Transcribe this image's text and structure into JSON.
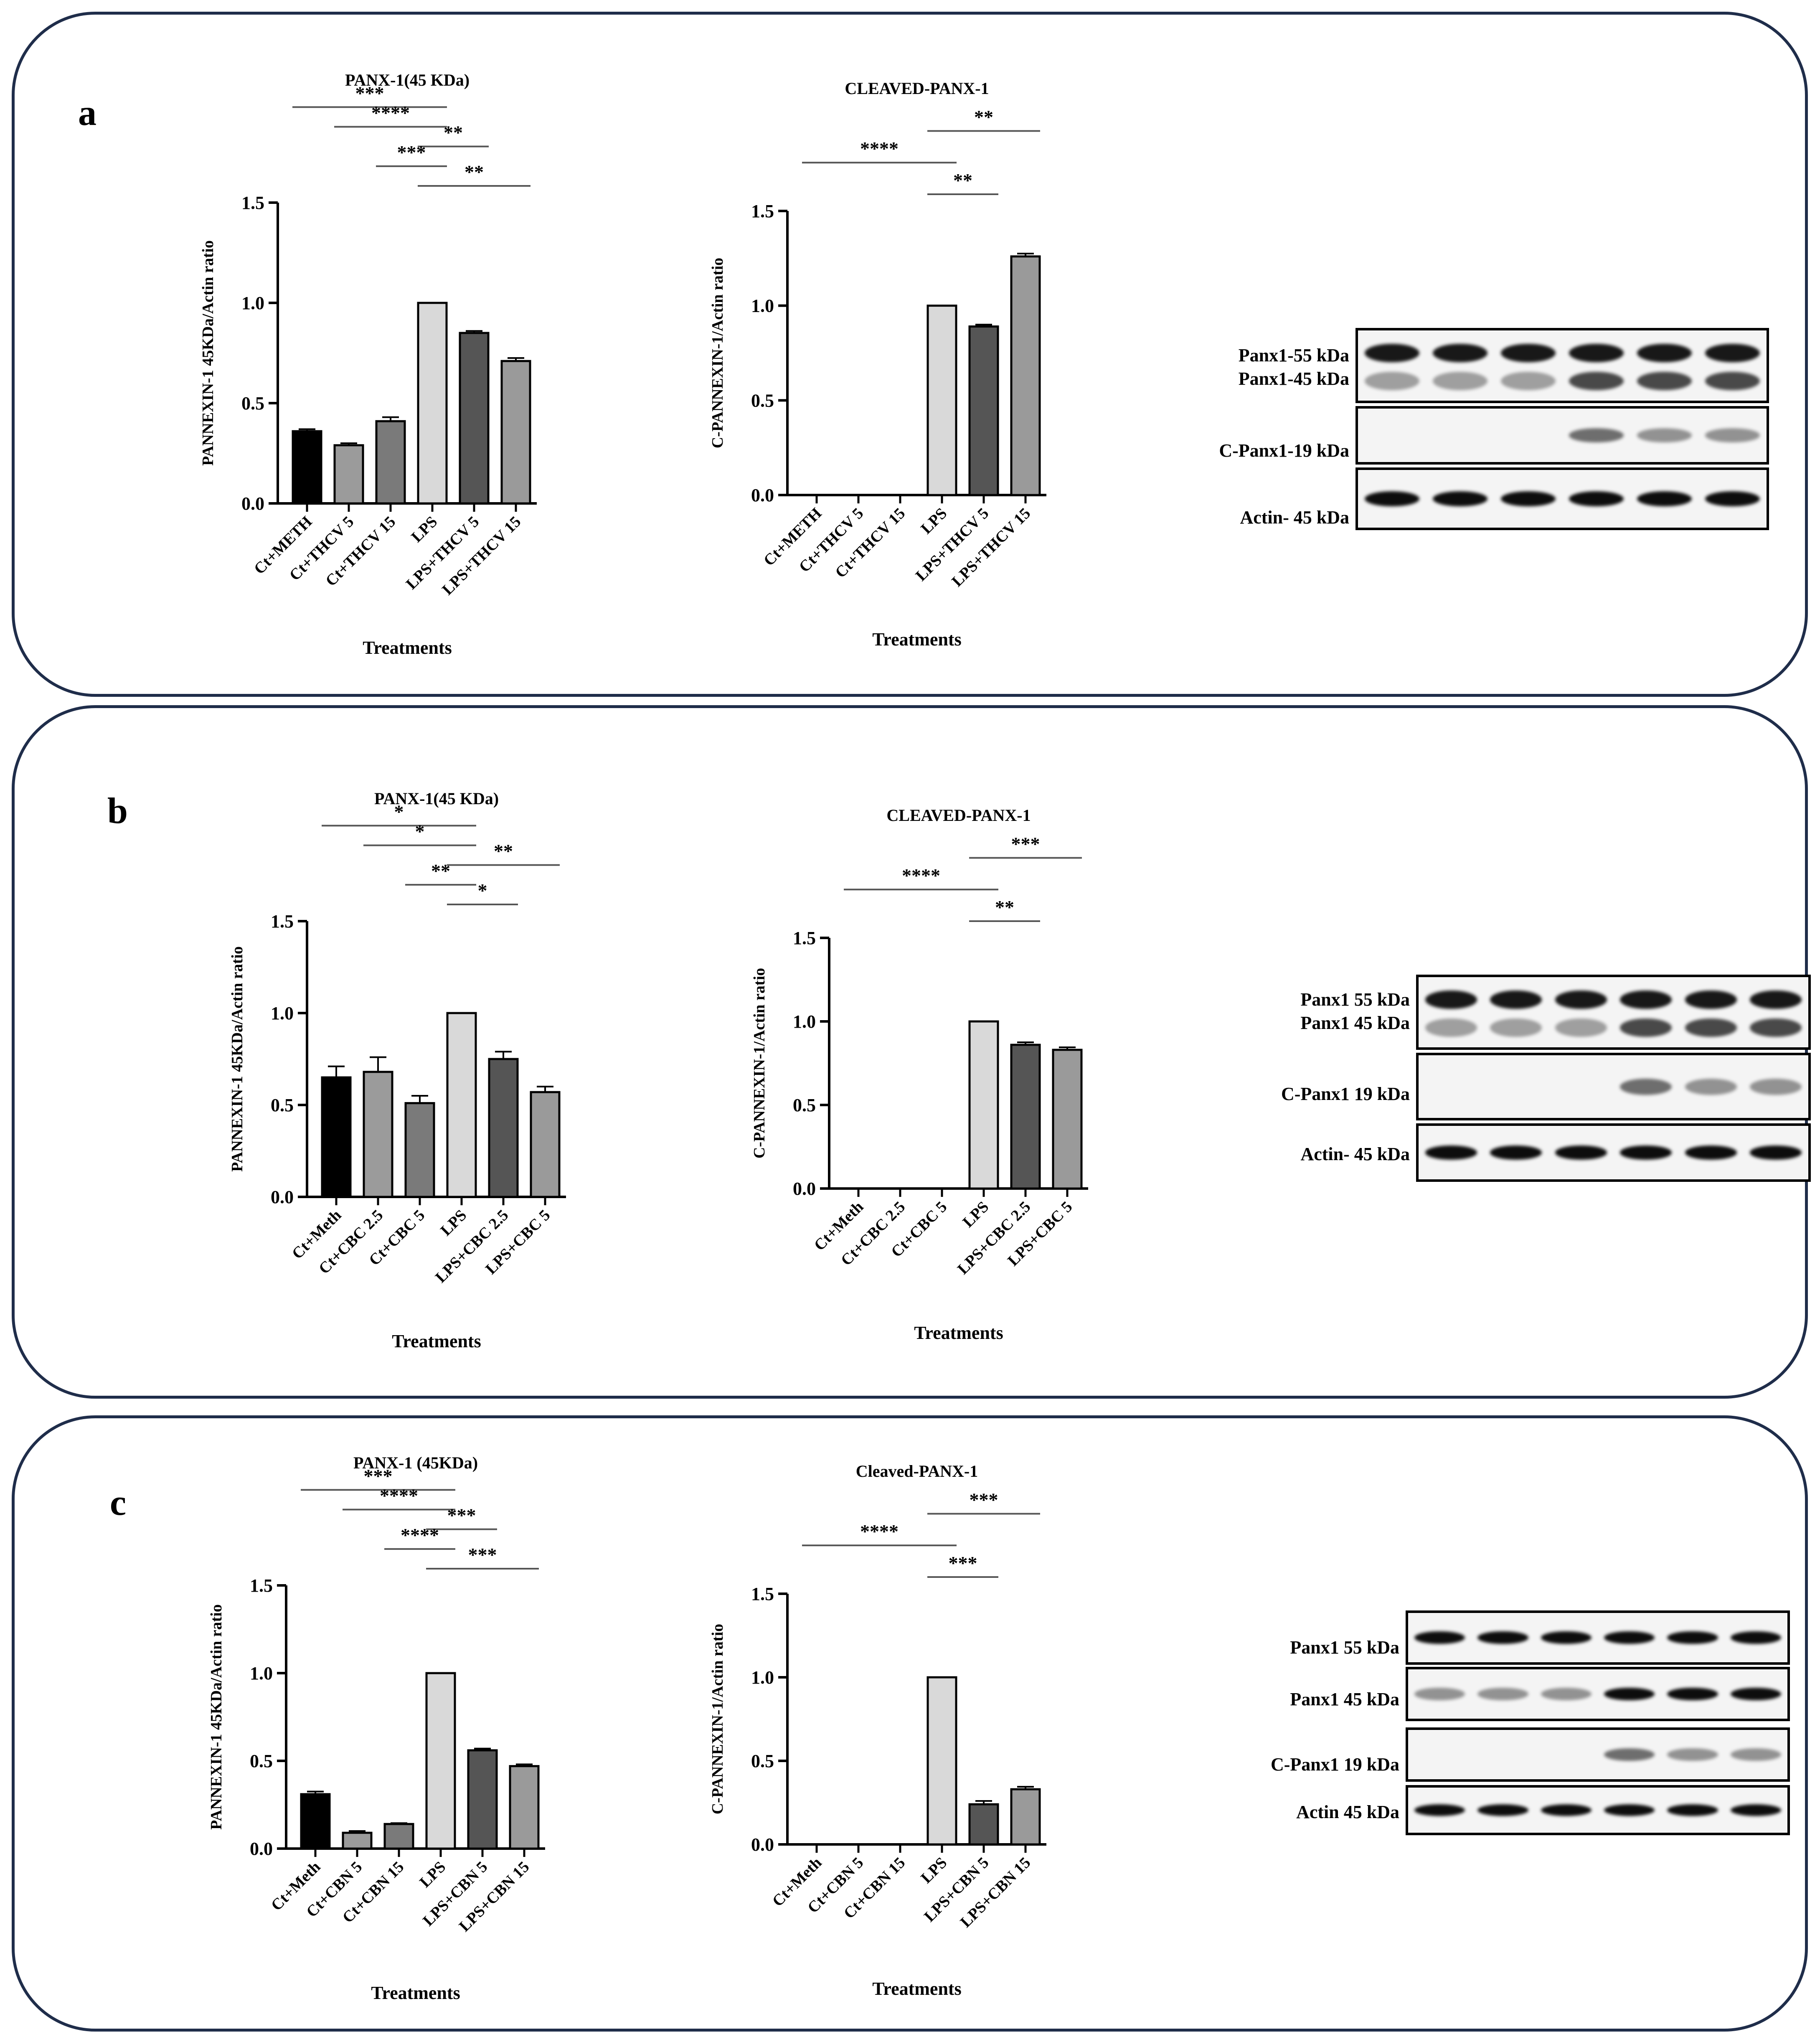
{
  "panels": [
    {
      "letter": "a",
      "charts": [
        {
          "type": "bar",
          "title": "PANX-1(45 KDa)",
          "ylabel": "PANNEXIN-1 45KDa/Actin ratio",
          "xlabel": "Treatments",
          "categories": [
            "Ct+METH",
            "Ct+THCV 5",
            "Ct+THCV 15",
            "LPS",
            "LPS+THCV 5",
            "LPS+THCV 15"
          ],
          "values": [
            0.36,
            0.29,
            0.41,
            1.0,
            0.85,
            0.71
          ],
          "errors": [
            0.01,
            0.01,
            0.02,
            0.0,
            0.01,
            0.015
          ],
          "ylim": [
            0,
            1.5
          ],
          "yticks": [
            "0.0",
            "0.5",
            "1.0",
            "1.5"
          ],
          "significance": [
            {
              "from": 0,
              "to": 3,
              "label": "***"
            },
            {
              "from": 1,
              "to": 3,
              "label": "****"
            },
            {
              "from": 3,
              "to": 4,
              "label": "**"
            },
            {
              "from": 2,
              "to": 3,
              "label": "***"
            },
            {
              "from": 3,
              "to": 5,
              "label": "**"
            }
          ]
        },
        {
          "type": "bar",
          "title": "CLEAVED-PANX-1",
          "ylabel": "C-PANNEXIN-1/Actin ratio",
          "xlabel": "Treatments",
          "categories": [
            "Ct+METH",
            "Ct+THCV 5",
            "Ct+THCV 15",
            "LPS",
            "LPS+THCV 5",
            "LPS+THCV 15"
          ],
          "values": [
            0,
            0,
            0,
            1.0,
            0.89,
            1.26
          ],
          "errors": [
            0,
            0,
            0,
            0.0,
            0.01,
            0.015
          ],
          "ylim": [
            0,
            1.5
          ],
          "yticks": [
            "0.0",
            "0.5",
            "1.0",
            "1.5"
          ],
          "significance": [
            {
              "from": 3,
              "to": 5,
              "label": "**"
            },
            {
              "from": 0,
              "to": 3,
              "label": "****"
            },
            {
              "from": 3,
              "to": 4,
              "label": "**"
            }
          ]
        }
      ],
      "blot": {
        "labels": [
          "Panx1-55 kDa",
          "Panx1-45 kDa",
          "C-Panx1-19 kDa",
          "Actin- 45 kDa"
        ]
      }
    },
    {
      "letter": "b",
      "charts": [
        {
          "type": "bar",
          "title": "PANX-1(45 KDa)",
          "ylabel": "PANNEXIN-1 45KDa/Actin ratio",
          "xlabel": "Treatments",
          "categories": [
            "Ct+Meth",
            "Ct+CBC 2.5",
            "Ct+CBC 5",
            "LPS",
            "LPS+CBC 2.5",
            "LPS+CBC 5"
          ],
          "values": [
            0.65,
            0.68,
            0.51,
            1.0,
            0.75,
            0.57
          ],
          "errors": [
            0.06,
            0.08,
            0.04,
            0.0,
            0.04,
            0.03
          ],
          "ylim": [
            0,
            1.5
          ],
          "yticks": [
            "0.0",
            "0.5",
            "1.0",
            "1.5"
          ],
          "significance": [
            {
              "from": 0,
              "to": 3,
              "label": "*"
            },
            {
              "from": 1,
              "to": 3,
              "label": "*"
            },
            {
              "from": 3,
              "to": 5,
              "label": "**"
            },
            {
              "from": 2,
              "to": 3,
              "label": "**"
            },
            {
              "from": 3,
              "to": 4,
              "label": "*"
            }
          ]
        },
        {
          "type": "bar",
          "title": "CLEAVED-PANX-1",
          "ylabel": "C-PANNEXIN-1/Actin ratio",
          "xlabel": "Treatments",
          "categories": [
            "Ct+Meth",
            "Ct+CBC 2.5",
            "Ct+CBC 5",
            "LPS",
            "LPS+CBC 2.5",
            "LPS+CBC 5"
          ],
          "values": [
            0,
            0,
            0,
            1.0,
            0.86,
            0.83
          ],
          "errors": [
            0,
            0,
            0,
            0.0,
            0.015,
            0.015
          ],
          "ylim": [
            0,
            1.5
          ],
          "yticks": [
            "0.0",
            "0.5",
            "1.0",
            "1.5"
          ],
          "significance": [
            {
              "from": 3,
              "to": 5,
              "label": "***"
            },
            {
              "from": 0,
              "to": 3,
              "label": "****"
            },
            {
              "from": 3,
              "to": 4,
              "label": "**"
            }
          ]
        }
      ],
      "blot": {
        "labels": [
          "Panx1 55 kDa",
          "Panx1 45 kDa",
          "C-Panx1 19 kDa",
          "Actin- 45 kDa"
        ]
      }
    },
    {
      "letter": "c",
      "charts": [
        {
          "type": "bar",
          "title": "PANX-1 (45KDa)",
          "ylabel": "PANNEXIN-1 45KDa/Actin ratio",
          "xlabel": "Treatments",
          "categories": [
            "Ct+Meth",
            "Ct+CBN 5",
            "Ct+CBN 15",
            "LPS",
            "LPS+CBN 5",
            "LPS+CBN 15"
          ],
          "values": [
            0.31,
            0.09,
            0.14,
            1.0,
            0.56,
            0.47
          ],
          "errors": [
            0.015,
            0.01,
            0.005,
            0.0,
            0.01,
            0.01
          ],
          "ylim": [
            0,
            1.5
          ],
          "yticks": [
            "0.0",
            "0.5",
            "1.0",
            "1.5"
          ],
          "significance": [
            {
              "from": 0,
              "to": 3,
              "label": "***"
            },
            {
              "from": 1,
              "to": 3,
              "label": "****"
            },
            {
              "from": 3,
              "to": 4,
              "label": "***"
            },
            {
              "from": 2,
              "to": 3,
              "label": "****"
            },
            {
              "from": 3,
              "to": 5,
              "label": "***"
            }
          ]
        },
        {
          "type": "bar",
          "title": "Cleaved-PANX-1",
          "ylabel": "C-PANNEXIN-1/Actin ratio",
          "xlabel": "Treatments",
          "categories": [
            "Ct+Meth",
            "Ct+CBN 5",
            "Ct+CBN 15",
            "LPS",
            "LPS+CBN 5",
            "LPS+CBN 15"
          ],
          "values": [
            0,
            0,
            0,
            1.0,
            0.24,
            0.33
          ],
          "errors": [
            0,
            0,
            0,
            0.0,
            0.02,
            0.015
          ],
          "ylim": [
            0,
            1.5
          ],
          "yticks": [
            "0.0",
            "0.5",
            "1.0",
            "1.5"
          ],
          "significance": [
            {
              "from": 3,
              "to": 5,
              "label": "***"
            },
            {
              "from": 0,
              "to": 3,
              "label": "****"
            },
            {
              "from": 3,
              "to": 4,
              "label": "***"
            }
          ]
        }
      ],
      "blot": {
        "labels": [
          "Panx1 55 kDa",
          "Panx1 45 kDa",
          "C-Panx1 19 kDa",
          "Actin 45 kDa"
        ]
      }
    }
  ],
  "colors": {
    "bars": [
      "#000000",
      "#9b9b9b",
      "#7a7a7a",
      "#d9d9d9",
      "#555555",
      "#9a9a9a"
    ],
    "panel_border": "#1f2d4a"
  }
}
